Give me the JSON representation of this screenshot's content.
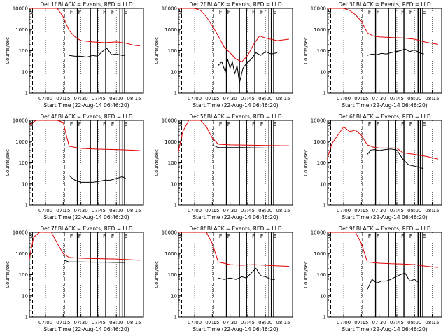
{
  "page": {
    "ylabel": "Counts/sec",
    "xlabel": "Start Time (22-Aug-14 06:46:20)"
  },
  "colors": {
    "events": "#000000",
    "lld": "#e00000",
    "background": "#ffffff"
  },
  "chart_data": [
    {
      "type": "line",
      "title": "Det 1f BLACK = Events, RED = LLD",
      "xlabel": "Start Time (22-Aug-14 06:46:20)",
      "ylabel": "Counts/sec",
      "yscale": "log",
      "ylim": [
        1,
        10000
      ],
      "xlim": [
        "06:46:20",
        "08:23:00"
      ],
      "xticks": [
        "07:00",
        "07:15",
        "07:30",
        "07:45",
        "08:00",
        "08:15"
      ],
      "yticks": [
        "1",
        "10",
        "100",
        "1000",
        "10000"
      ],
      "markers": [
        "S",
        "F",
        "F",
        "F",
        "F",
        "E"
      ],
      "series": [
        {
          "name": "Events",
          "color": "#000000",
          "x": [
            "07:20",
            "07:25",
            "07:30",
            "07:35",
            "07:40",
            "07:44",
            "07:48",
            "07:52",
            "07:56",
            "08:00",
            "08:05",
            "08:07"
          ],
          "y": [
            60,
            55,
            55,
            50,
            60,
            55,
            90,
            130,
            65,
            70,
            60,
            60
          ]
        },
        {
          "name": "LLD",
          "color": "#e00000",
          "x": [
            "06:46",
            "06:52",
            "07:00",
            "07:05",
            "07:10",
            "07:15",
            "07:20",
            "07:25",
            "07:30",
            "07:40",
            "07:50",
            "08:00",
            "08:08",
            "08:15",
            "08:20"
          ],
          "y": [
            10000,
            10000,
            10000,
            10000,
            10000,
            4000,
            900,
            450,
            300,
            260,
            240,
            260,
            230,
            180,
            170
          ]
        }
      ]
    },
    {
      "type": "line",
      "title": "Det 2f BLACK = Events, RED = LLD",
      "xlabel": "Start Time (22-Aug-14 06:46:20)",
      "ylabel": "Counts/sec",
      "yscale": "log",
      "ylim": [
        1,
        10000
      ],
      "xlim": [
        "06:46:20",
        "08:23:00"
      ],
      "xticks": [
        "07:00",
        "07:15",
        "07:30",
        "07:45",
        "08:00",
        "08:15"
      ],
      "yticks": [
        "1",
        "10",
        "100",
        "1000",
        "10000"
      ],
      "markers": [
        "S",
        "F",
        "F",
        "F",
        "F",
        "E"
      ],
      "series": [
        {
          "name": "Events",
          "color": "#000000",
          "x": [
            "07:20",
            "07:23",
            "07:26",
            "07:28",
            "07:30",
            "07:32",
            "07:34",
            "07:36",
            "07:38",
            "07:41",
            "07:44",
            "07:48",
            "07:52",
            "07:56",
            "08:00",
            "08:05",
            "08:10"
          ],
          "y": [
            20,
            30,
            10,
            40,
            15,
            30,
            8,
            20,
            3,
            15,
            25,
            40,
            80,
            60,
            90,
            70,
            80
          ]
        },
        {
          "name": "LLD",
          "color": "#e00000",
          "x": [
            "06:46",
            "06:52",
            "07:00",
            "07:05",
            "07:10",
            "07:15",
            "07:20",
            "07:25",
            "07:30",
            "07:35",
            "07:40",
            "07:45",
            "07:50",
            "07:55",
            "08:00",
            "08:10",
            "08:20"
          ],
          "y": [
            10000,
            10000,
            10000,
            8000,
            4000,
            1500,
            500,
            150,
            80,
            40,
            30,
            60,
            200,
            500,
            400,
            300,
            350
          ]
        }
      ]
    },
    {
      "type": "line",
      "title": "Det 3f BLACK = Events, RED = LLD",
      "xlabel": "Start Time (22-Aug-14 06:46:20)",
      "ylabel": "Counts/sec",
      "yscale": "log",
      "ylim": [
        1,
        10000
      ],
      "xlim": [
        "06:46:20",
        "08:23:00"
      ],
      "xticks": [
        "07:00",
        "07:15",
        "07:30",
        "07:45",
        "08:00",
        "08:15"
      ],
      "yticks": [
        "1",
        "10",
        "100",
        "1000",
        "10000"
      ],
      "markers": [
        "S",
        "F",
        "F",
        "F",
        "F",
        "E"
      ],
      "series": [
        {
          "name": "Events",
          "color": "#000000",
          "x": [
            "07:20",
            "07:24",
            "07:28",
            "07:32",
            "07:36",
            "07:40",
            "07:44",
            "07:48",
            "07:52",
            "07:56",
            "08:00",
            "08:04",
            "08:08"
          ],
          "y": [
            60,
            70,
            65,
            75,
            70,
            80,
            90,
            100,
            120,
            90,
            110,
            80,
            70
          ]
        },
        {
          "name": "LLD",
          "color": "#e00000",
          "x": [
            "06:46",
            "06:52",
            "07:00",
            "07:05",
            "07:10",
            "07:15",
            "07:20",
            "07:25",
            "07:30",
            "07:40",
            "07:50",
            "08:00",
            "08:10",
            "08:20"
          ],
          "y": [
            10000,
            10000,
            10000,
            8000,
            5000,
            2500,
            700,
            500,
            450,
            420,
            400,
            350,
            250,
            200
          ]
        }
      ]
    },
    {
      "type": "line",
      "title": "Det 4f BLACK = Events, RED = LLD",
      "xlabel": "Start Time (22-Aug-14 06:46:20)",
      "ylabel": "Counts/sec",
      "yscale": "log",
      "ylim": [
        1,
        10000
      ],
      "xlim": [
        "06:46:20",
        "08:23:00"
      ],
      "xticks": [
        "07:00",
        "07:15",
        "07:30",
        "07:45",
        "08:00",
        "08:15"
      ],
      "yticks": [
        "1",
        "10",
        "100",
        "1000",
        "10000"
      ],
      "markers": [
        "S",
        "F",
        "F",
        "F",
        "F",
        "E"
      ],
      "series": [
        {
          "name": "Events",
          "color": "#000000",
          "x": [
            "07:20",
            "07:22",
            "07:25",
            "07:30",
            "07:35",
            "07:40",
            "07:45",
            "07:50",
            "07:55",
            "08:00",
            "08:05",
            "08:08"
          ],
          "y": [
            25,
            20,
            15,
            12,
            12,
            12,
            13,
            15,
            15,
            18,
            22,
            18
          ]
        },
        {
          "name": "LLD",
          "color": "#e00000",
          "x": [
            "06:46",
            "06:52",
            "07:00",
            "07:05",
            "07:10",
            "07:15",
            "07:20",
            "07:30",
            "07:40",
            "07:50",
            "08:00",
            "08:10",
            "08:20"
          ],
          "y": [
            6000,
            10000,
            10000,
            10000,
            10000,
            8000,
            600,
            480,
            450,
            430,
            420,
            400,
            380
          ]
        }
      ]
    },
    {
      "type": "line",
      "title": "Det 5f BLACK = Events, RED = LLD",
      "xlabel": "Start Time (22-Aug-14 06:46:20)",
      "ylabel": "Counts/sec",
      "yscale": "log",
      "ylim": [
        1,
        10000
      ],
      "xlim": [
        "06:46:20",
        "08:23:00"
      ],
      "xticks": [
        "07:00",
        "07:15",
        "07:30",
        "07:45",
        "08:00",
        "08:15"
      ],
      "yticks": [
        "1",
        "10",
        "100",
        "1000",
        "10000"
      ],
      "markers": [
        "S",
        "F",
        "F",
        "F",
        "F",
        "E"
      ],
      "series": [
        {
          "name": "Events",
          "color": "#000000",
          "x": [
            "07:15",
            "07:20",
            "07:30",
            "07:40",
            "07:50",
            "08:00",
            "08:07"
          ],
          "y": [
            700,
            520,
            520,
            520,
            510,
            500,
            500
          ]
        },
        {
          "name": "LLD",
          "color": "#e00000",
          "x": [
            "06:46",
            "06:50",
            "06:55",
            "07:00",
            "07:05",
            "07:10",
            "07:15",
            "07:20",
            "07:30",
            "07:45",
            "08:00",
            "08:15",
            "08:20"
          ],
          "y": [
            300,
            3000,
            10000,
            10000,
            10000,
            5000,
            1500,
            750,
            700,
            680,
            660,
            640,
            640
          ]
        }
      ]
    },
    {
      "type": "line",
      "title": "Det 6f BLACK = Events, RED = LLD",
      "xlabel": "Start Time (22-Aug-14 06:46:20)",
      "ylabel": "Counts/sec",
      "yscale": "log",
      "ylim": [
        1,
        10000
      ],
      "xlim": [
        "06:46:20",
        "08:23:00"
      ],
      "xticks": [
        "07:00",
        "07:15",
        "07:30",
        "07:45",
        "08:00",
        "08:15"
      ],
      "yticks": [
        "1",
        "10",
        "100",
        "1000",
        "10000"
      ],
      "markers": [
        "S",
        "F",
        "F",
        "F",
        "F",
        "E"
      ],
      "series": [
        {
          "name": "Events",
          "color": "#000000",
          "x": [
            "07:20",
            "07:23",
            "07:26",
            "07:30",
            "07:35",
            "07:40",
            "07:45",
            "07:50",
            "07:55",
            "08:00",
            "08:05",
            "08:08"
          ],
          "y": [
            250,
            400,
            420,
            380,
            420,
            450,
            400,
            150,
            80,
            70,
            60,
            50
          ]
        },
        {
          "name": "LLD",
          "color": "#e00000",
          "x": [
            "06:46",
            "06:50",
            "06:55",
            "07:00",
            "07:05",
            "07:10",
            "07:15",
            "07:20",
            "07:25",
            "07:30",
            "07:40",
            "07:45",
            "07:50",
            "08:00",
            "08:10",
            "08:20"
          ],
          "y": [
            150,
            800,
            2000,
            5000,
            3000,
            3500,
            2000,
            700,
            550,
            500,
            500,
            500,
            300,
            250,
            200,
            150
          ]
        }
      ]
    },
    {
      "type": "line",
      "title": "Det 7f BLACK = Events, RED = LLD",
      "xlabel": "Start Time (22-Aug-14 06:46:20)",
      "ylabel": "Counts/sec",
      "yscale": "log",
      "ylim": [
        1,
        10000
      ],
      "xlim": [
        "06:46:20",
        "08:23:00"
      ],
      "xticks": [
        "07:00",
        "07:15",
        "07:30",
        "07:45",
        "08:00",
        "08:15"
      ],
      "yticks": [
        "1",
        "10",
        "100",
        "1000",
        "10000"
      ],
      "markers": [
        "S",
        "F",
        "F",
        "F",
        "F",
        "E"
      ],
      "series": [
        {
          "name": "Events",
          "color": "#000000",
          "x": [
            "07:15",
            "07:20",
            "07:30",
            "07:40",
            "07:50",
            "08:00",
            "08:07"
          ],
          "y": [
            500,
            400,
            400,
            390,
            390,
            380,
            380
          ]
        },
        {
          "name": "LLD",
          "color": "#e00000",
          "x": [
            "06:46",
            "06:50",
            "06:55",
            "07:00",
            "07:05",
            "07:10",
            "07:15",
            "07:20",
            "07:30",
            "07:45",
            "08:00",
            "08:15",
            "08:20"
          ],
          "y": [
            500,
            6000,
            10000,
            10000,
            10000,
            3000,
            1000,
            650,
            600,
            570,
            550,
            500,
            480
          ]
        }
      ]
    },
    {
      "type": "line",
      "title": "Det 8f BLACK = Events, RED = LLD",
      "xlabel": "Start Time (22-Aug-14 06:46:20)",
      "ylabel": "Counts/sec",
      "yscale": "log",
      "ylim": [
        1,
        10000
      ],
      "xlim": [
        "06:46:20",
        "08:23:00"
      ],
      "xticks": [
        "07:00",
        "07:15",
        "07:30",
        "07:45",
        "08:00",
        "08:15"
      ],
      "yticks": [
        "1",
        "10",
        "100",
        "1000",
        "10000"
      ],
      "markers": [
        "S",
        "F",
        "F",
        "F",
        "F",
        "E"
      ],
      "series": [
        {
          "name": "Events",
          "color": "#000000",
          "x": [
            "07:20",
            "07:25",
            "07:30",
            "07:35",
            "07:40",
            "07:44",
            "07:48",
            "07:52",
            "07:56",
            "08:00",
            "08:05",
            "08:08"
          ],
          "y": [
            70,
            60,
            70,
            60,
            80,
            70,
            120,
            200,
            90,
            80,
            60,
            60
          ]
        },
        {
          "name": "LLD",
          "color": "#e00000",
          "x": [
            "06:46",
            "06:52",
            "07:00",
            "07:05",
            "07:10",
            "07:15",
            "07:20",
            "07:30",
            "07:40",
            "07:50",
            "08:00",
            "08:10",
            "08:20"
          ],
          "y": [
            10000,
            10000,
            10000,
            10000,
            10000,
            3000,
            400,
            300,
            280,
            300,
            280,
            260,
            250
          ]
        }
      ]
    },
    {
      "type": "line",
      "title": "Det 9f BLACK = Events, RED = LLD",
      "xlabel": "Start Time (22-Aug-14 06:46:20)",
      "ylabel": "Counts/sec",
      "yscale": "log",
      "ylim": [
        1,
        10000
      ],
      "xlim": [
        "06:46:20",
        "08:23:00"
      ],
      "xticks": [
        "07:00",
        "07:15",
        "07:30",
        "07:45",
        "08:00",
        "08:15"
      ],
      "yticks": [
        "1",
        "10",
        "100",
        "1000",
        "10000"
      ],
      "markers": [
        "S",
        "F",
        "F",
        "F",
        "F",
        "E"
      ],
      "series": [
        {
          "name": "Events",
          "color": "#000000",
          "x": [
            "07:20",
            "07:24",
            "07:28",
            "07:32",
            "07:36",
            "07:40",
            "07:44",
            "07:48",
            "07:52",
            "07:56",
            "08:00",
            "08:04",
            "08:08"
          ],
          "y": [
            20,
            60,
            40,
            50,
            50,
            60,
            80,
            100,
            120,
            50,
            60,
            40,
            40
          ]
        },
        {
          "name": "LLD",
          "color": "#e00000",
          "x": [
            "06:46",
            "06:52",
            "07:00",
            "07:05",
            "07:10",
            "07:15",
            "07:20",
            "07:30",
            "07:40",
            "07:50",
            "08:00",
            "08:10",
            "08:20"
          ],
          "y": [
            10000,
            10000,
            10000,
            10000,
            10000,
            3000,
            400,
            350,
            330,
            320,
            300,
            250,
            220
          ]
        }
      ]
    }
  ]
}
